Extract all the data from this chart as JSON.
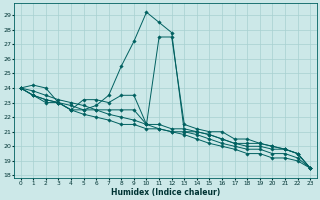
{
  "xlabel": "Humidex (Indice chaleur)",
  "ylabel": "",
  "bg_color": "#cce8e8",
  "grid_color": "#a8d0d0",
  "line_color": "#006060",
  "xlim": [
    -0.5,
    23.5
  ],
  "ylim": [
    17.8,
    29.8
  ],
  "yticks": [
    18,
    19,
    20,
    21,
    22,
    23,
    24,
    25,
    26,
    27,
    28,
    29
  ],
  "xticks": [
    0,
    1,
    2,
    3,
    4,
    5,
    6,
    7,
    8,
    9,
    10,
    11,
    12,
    13,
    14,
    15,
    16,
    17,
    18,
    19,
    20,
    21,
    22,
    23
  ],
  "series": [
    [
      24.0,
      24.2,
      24.0,
      23.0,
      22.8,
      22.5,
      22.8,
      23.5,
      25.5,
      27.2,
      29.2,
      28.5,
      27.8,
      21.0,
      21.0,
      20.8,
      20.5,
      20.2,
      20.2,
      20.2,
      20.0,
      19.8,
      19.5,
      18.5
    ],
    [
      24.0,
      23.5,
      23.0,
      23.0,
      22.5,
      23.2,
      23.2,
      23.0,
      23.5,
      23.5,
      21.5,
      27.5,
      27.5,
      21.5,
      21.2,
      21.0,
      21.0,
      20.5,
      20.5,
      20.2,
      20.0,
      19.8,
      19.5,
      18.5
    ],
    [
      24.0,
      23.5,
      23.2,
      23.0,
      22.5,
      22.5,
      22.5,
      22.5,
      22.5,
      22.5,
      21.5,
      21.5,
      21.2,
      21.2,
      21.0,
      20.8,
      20.5,
      20.2,
      20.0,
      20.0,
      19.8,
      19.8,
      19.5,
      18.5
    ],
    [
      24.0,
      23.5,
      23.2,
      23.0,
      22.5,
      22.2,
      22.0,
      21.8,
      21.5,
      21.5,
      21.2,
      21.2,
      21.0,
      21.0,
      20.8,
      20.5,
      20.2,
      20.0,
      19.8,
      19.8,
      19.5,
      19.5,
      19.2,
      18.5
    ],
    [
      24.0,
      23.8,
      23.5,
      23.2,
      23.0,
      22.8,
      22.5,
      22.2,
      22.0,
      21.8,
      21.5,
      21.2,
      21.0,
      20.8,
      20.5,
      20.2,
      20.0,
      19.8,
      19.5,
      19.5,
      19.2,
      19.2,
      19.0,
      18.5
    ]
  ]
}
